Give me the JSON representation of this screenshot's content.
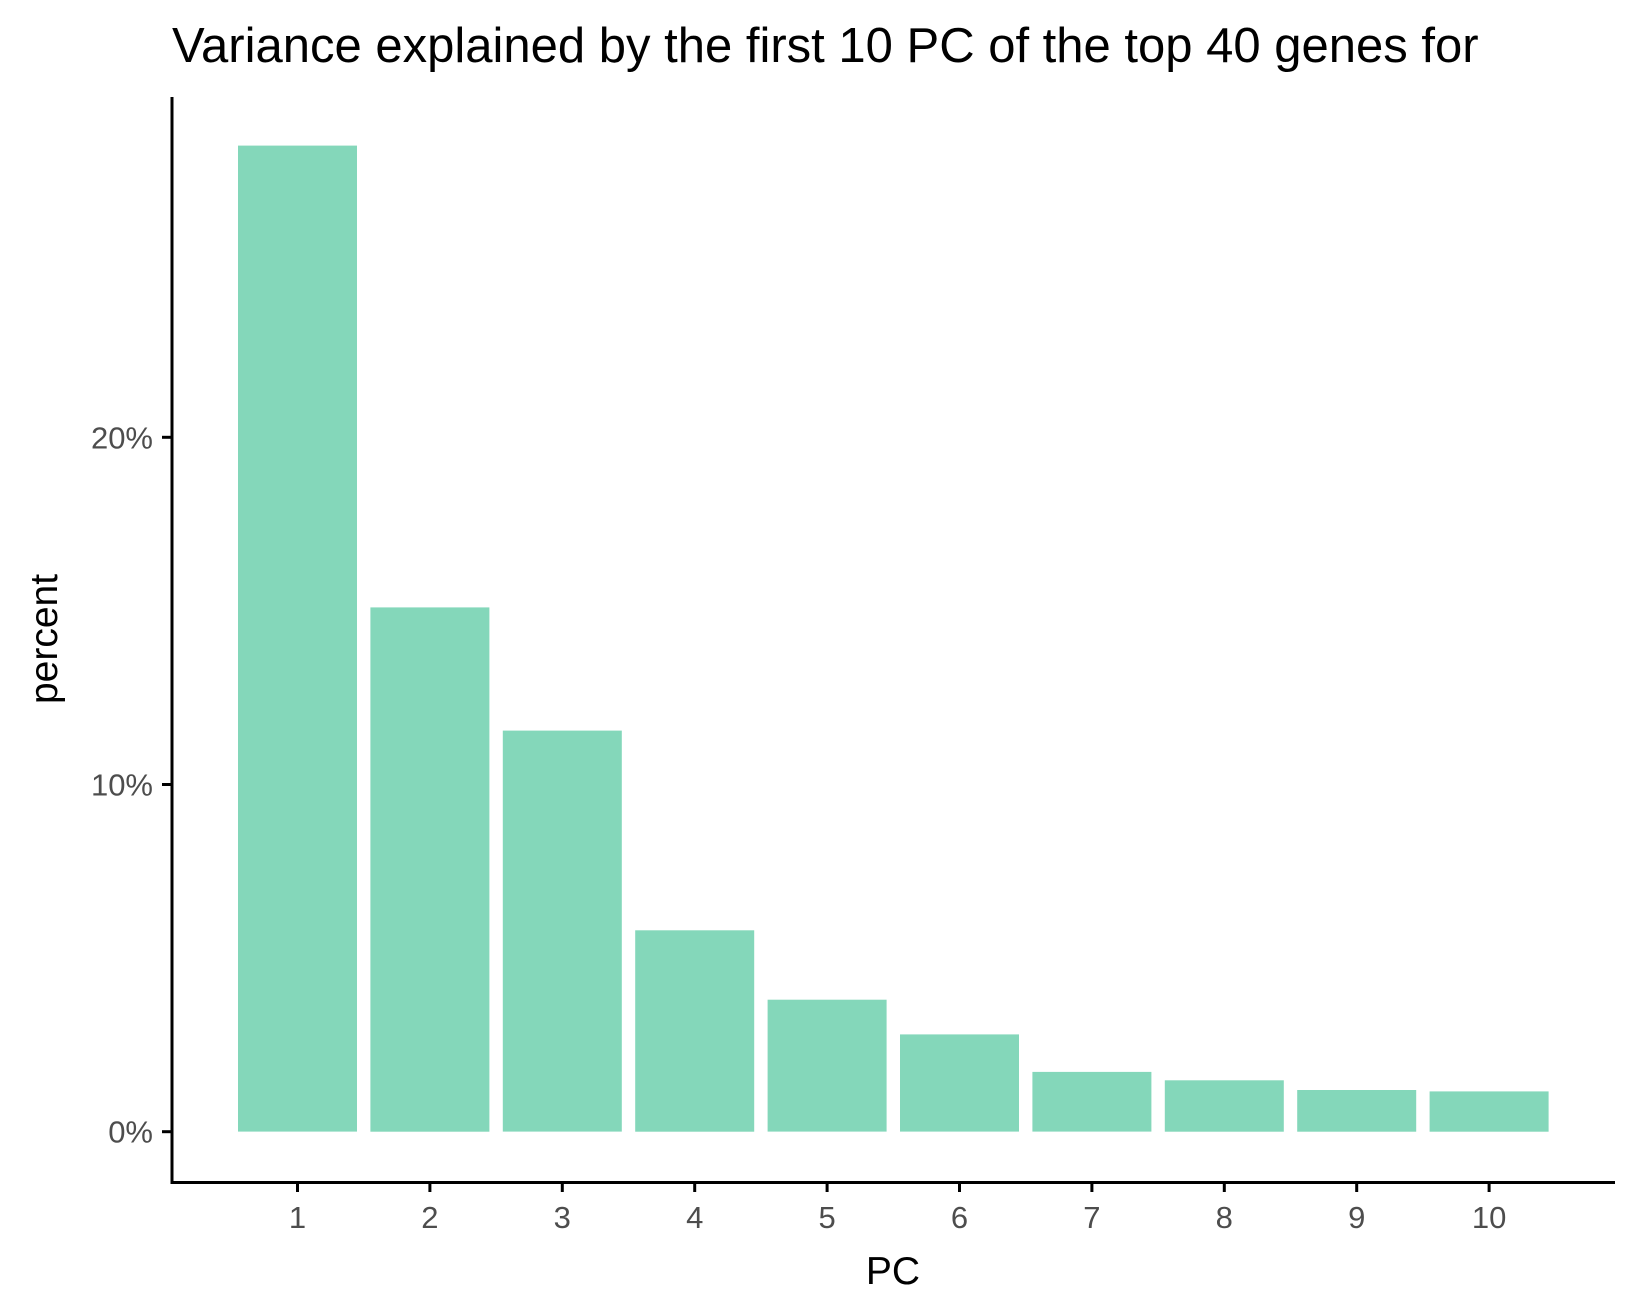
{
  "chart_data": {
    "type": "bar",
    "title": "Variance explained by the first 10 PC of the top 40 genes for",
    "xlabel": "PC",
    "ylabel": "percent",
    "categories": [
      "1",
      "2",
      "3",
      "4",
      "5",
      "6",
      "7",
      "8",
      "9",
      "10"
    ],
    "values": [
      28.4,
      15.1,
      11.55,
      5.8,
      3.8,
      2.8,
      1.72,
      1.48,
      1.2,
      1.16
    ],
    "y_ticks": [
      {
        "value": 0,
        "label": "0%"
      },
      {
        "value": 10,
        "label": "10%"
      },
      {
        "value": 20,
        "label": "20%"
      }
    ],
    "ylim": [
      -1.45,
      29.8
    ],
    "bar_color": "#84d7ba",
    "grid": false,
    "legend": "none"
  }
}
